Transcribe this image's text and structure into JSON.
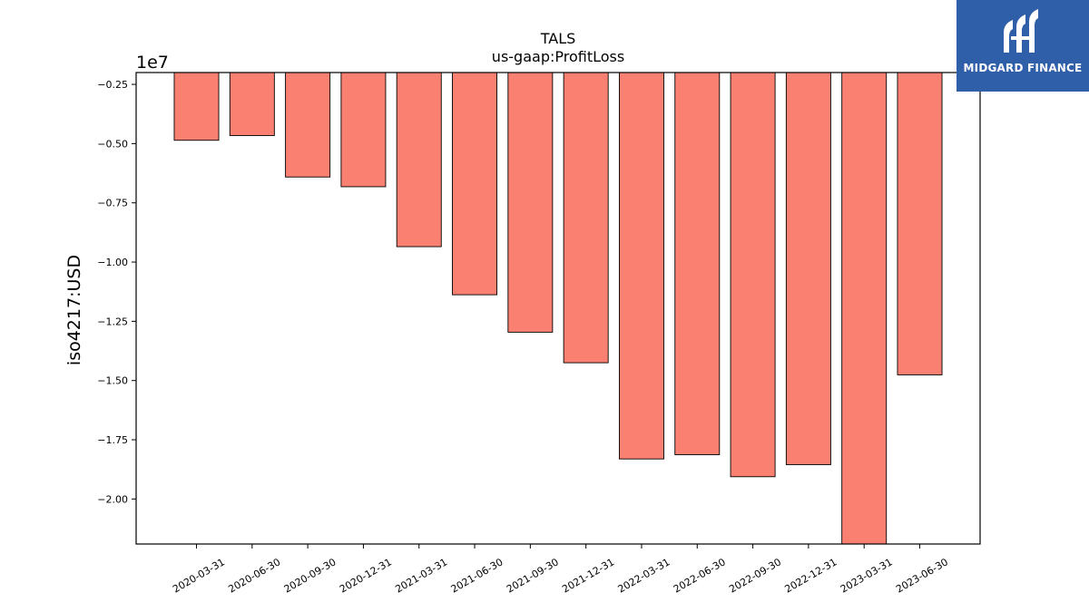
{
  "chart_data": {
    "type": "bar",
    "title": "TALS",
    "subtitle": "us-gaap:ProfitLoss",
    "ylabel": "iso4217:USD",
    "xlabel": "",
    "y_scale_label": "1e7",
    "ylim": [
      -2.19,
      -0.2
    ],
    "yticks": [
      -0.25,
      -0.5,
      -0.75,
      -1.0,
      -1.25,
      -1.5,
      -1.75,
      -2.0
    ],
    "ytick_labels": [
      "−0.25",
      "−0.50",
      "−0.75",
      "−1.00",
      "−1.25",
      "−1.50",
      "−1.75",
      "−2.00"
    ],
    "categories": [
      "2020-03-31",
      "2020-06-30",
      "2020-09-30",
      "2020-12-31",
      "2021-03-31",
      "2021-06-30",
      "2021-09-30",
      "2021-12-31",
      "2022-03-31",
      "2022-06-30",
      "2022-09-30",
      "2022-12-31",
      "2023-03-31",
      "2023-06-30"
    ],
    "values": [
      -0.486,
      -0.466,
      -0.641,
      -0.682,
      -0.935,
      -1.138,
      -1.296,
      -1.425,
      -1.831,
      -1.813,
      -1.906,
      -1.855,
      -2.19,
      -1.476
    ],
    "bar_color": "#fa8072",
    "edge_color": "#000000",
    "grid": false
  },
  "logo": {
    "text": "MIDGARD FINANCE",
    "background": "#2f5fa8"
  }
}
